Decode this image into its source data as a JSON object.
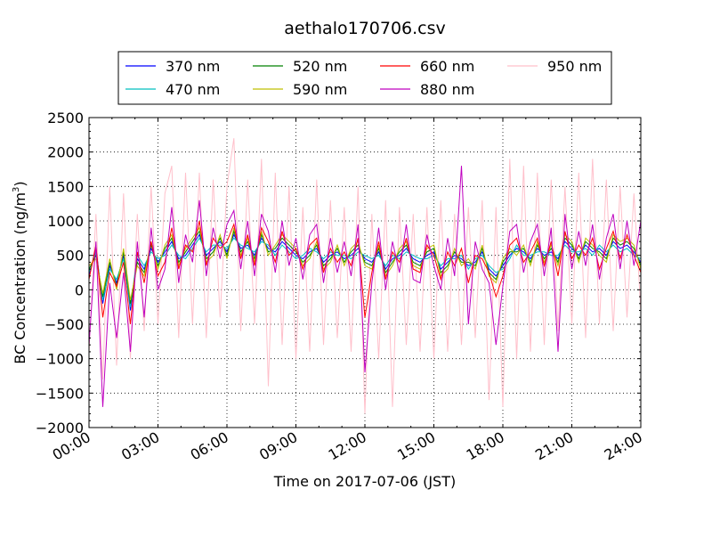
{
  "chart_data": {
    "type": "line",
    "title": "aethalo170706.csv",
    "xlabel": "Time on 2017-07-06 (JST)",
    "ylabel_main": "BC Concentration (ng/m",
    "ylabel_sup": "3",
    "ylabel_close": ")",
    "ylim": [
      -2000,
      2500
    ],
    "yticks": [
      -2000,
      -1500,
      -1000,
      -500,
      0,
      500,
      1000,
      1500,
      2000,
      2500
    ],
    "ytick_labels": [
      "−2000",
      "−1500",
      "−1000",
      "−500",
      "0",
      "500",
      "1000",
      "1500",
      "2000",
      "2500"
    ],
    "xlim_hours": [
      0,
      24
    ],
    "xticks_hours": [
      0,
      3,
      6,
      9,
      12,
      15,
      18,
      21,
      24
    ],
    "xtick_labels": [
      "00:00",
      "03:00",
      "06:00",
      "09:00",
      "12:00",
      "15:00",
      "18:00",
      "21:00",
      "24:00"
    ],
    "grid": true,
    "legend_position": "top-center",
    "series": [
      {
        "name": "370 nm",
        "color": "#0000ff"
      },
      {
        "name": "470 nm",
        "color": "#00bfbf"
      },
      {
        "name": "520 nm",
        "color": "#008000"
      },
      {
        "name": "590 nm",
        "color": "#bfbf00"
      },
      {
        "name": "660 nm",
        "color": "#ff0000"
      },
      {
        "name": "880 nm",
        "color": "#bf00bf"
      },
      {
        "name": "950 nm",
        "color": "#ffc0cb"
      }
    ],
    "x_hours": [
      0.0,
      0.3,
      0.6,
      0.9,
      1.2,
      1.5,
      1.8,
      2.1,
      2.4,
      2.7,
      3.0,
      3.3,
      3.6,
      3.9,
      4.2,
      4.5,
      4.8,
      5.1,
      5.4,
      5.7,
      6.0,
      6.3,
      6.6,
      6.9,
      7.2,
      7.5,
      7.8,
      8.1,
      8.4,
      8.7,
      9.0,
      9.3,
      9.6,
      9.9,
      10.2,
      10.5,
      10.8,
      11.1,
      11.4,
      11.7,
      12.0,
      12.3,
      12.6,
      12.9,
      13.2,
      13.5,
      13.8,
      14.1,
      14.4,
      14.7,
      15.0,
      15.3,
      15.6,
      15.9,
      16.2,
      16.5,
      16.8,
      17.1,
      17.4,
      17.7,
      18.0,
      18.3,
      18.6,
      18.9,
      19.2,
      19.5,
      19.8,
      20.1,
      20.4,
      20.7,
      21.0,
      21.3,
      21.6,
      21.9,
      22.2,
      22.5,
      22.8,
      23.1,
      23.4,
      23.7,
      24.0
    ],
    "series_values": [
      [
        200,
        600,
        -200,
        350,
        100,
        500,
        -300,
        450,
        300,
        600,
        400,
        550,
        700,
        450,
        500,
        650,
        800,
        500,
        600,
        700,
        550,
        800,
        600,
        650,
        500,
        750,
        600,
        550,
        700,
        600,
        500,
        450,
        550,
        600,
        400,
        500,
        550,
        450,
        500,
        600,
        450,
        400,
        550,
        300,
        450,
        500,
        600,
        450,
        400,
        500,
        550,
        300,
        400,
        500,
        450,
        350,
        400,
        550,
        300,
        200,
        350,
        500,
        600,
        550,
        450,
        600,
        500,
        550,
        450,
        700,
        600,
        500,
        650,
        550,
        600,
        500,
        700,
        600,
        650,
        550,
        400
      ],
      [
        250,
        550,
        -150,
        300,
        150,
        450,
        -250,
        500,
        350,
        550,
        450,
        500,
        650,
        500,
        450,
        600,
        750,
        550,
        650,
        650,
        600,
        750,
        650,
        600,
        550,
        700,
        650,
        500,
        650,
        550,
        450,
        500,
        600,
        550,
        450,
        550,
        500,
        500,
        450,
        550,
        500,
        450,
        500,
        350,
        500,
        450,
        550,
        500,
        450,
        450,
        500,
        350,
        450,
        450,
        500,
        300,
        450,
        500,
        350,
        250,
        300,
        450,
        650,
        500,
        500,
        550,
        550,
        500,
        500,
        650,
        550,
        550,
        600,
        500,
        650,
        550,
        650,
        550,
        600,
        500,
        450
      ],
      [
        300,
        500,
        -100,
        400,
        50,
        550,
        -200,
        400,
        250,
        650,
        350,
        600,
        750,
        400,
        550,
        700,
        850,
        450,
        550,
        750,
        500,
        850,
        550,
        700,
        450,
        800,
        550,
        600,
        750,
        650,
        550,
        400,
        500,
        650,
        350,
        450,
        600,
        400,
        550,
        650,
        400,
        350,
        600,
        250,
        400,
        550,
        650,
        400,
        350,
        550,
        600,
        250,
        350,
        550,
        400,
        400,
        350,
        600,
        250,
        150,
        400,
        550,
        550,
        600,
        400,
        650,
        450,
        600,
        400,
        750,
        650,
        450,
        700,
        600,
        550,
        450,
        750,
        650,
        700,
        600,
        350
      ],
      [
        350,
        450,
        -50,
        450,
        0,
        600,
        -150,
        350,
        200,
        700,
        300,
        650,
        800,
        350,
        600,
        750,
        900,
        400,
        500,
        800,
        450,
        900,
        500,
        750,
        400,
        850,
        500,
        650,
        800,
        700,
        600,
        350,
        450,
        700,
        300,
        400,
        650,
        350,
        600,
        700,
        350,
        300,
        650,
        200,
        350,
        600,
        700,
        350,
        300,
        600,
        650,
        200,
        300,
        600,
        350,
        450,
        300,
        650,
        200,
        100,
        450,
        600,
        500,
        650,
        350,
        700,
        400,
        650,
        350,
        800,
        700,
        400,
        750,
        650,
        500,
        400,
        800,
        700,
        750,
        650,
        300
      ],
      [
        150,
        650,
        -400,
        250,
        50,
        400,
        -500,
        550,
        100,
        700,
        200,
        400,
        900,
        300,
        650,
        550,
        1000,
        350,
        750,
        600,
        700,
        950,
        450,
        800,
        350,
        900,
        700,
        400,
        850,
        500,
        600,
        300,
        650,
        750,
        250,
        600,
        400,
        550,
        350,
        750,
        -400,
        250,
        700,
        150,
        550,
        400,
        750,
        300,
        250,
        650,
        500,
        150,
        550,
        350,
        600,
        100,
        500,
        450,
        250,
        -100,
        200,
        650,
        750,
        400,
        550,
        750,
        350,
        700,
        200,
        850,
        450,
        650,
        500,
        750,
        300,
        600,
        850,
        450,
        800,
        500,
        250
      ],
      [
        -800,
        700,
        -1700,
        100,
        -700,
        250,
        -900,
        700,
        -400,
        900,
        0,
        300,
        1200,
        100,
        800,
        400,
        1300,
        200,
        900,
        450,
        950,
        1150,
        300,
        1000,
        200,
        1100,
        850,
        250,
        1000,
        350,
        750,
        150,
        800,
        950,
        100,
        750,
        250,
        700,
        200,
        950,
        -1200,
        100,
        900,
        0,
        700,
        250,
        950,
        150,
        100,
        800,
        350,
        0,
        750,
        200,
        1800,
        -500,
        700,
        300,
        100,
        -800,
        50,
        850,
        950,
        250,
        700,
        950,
        200,
        900,
        -900,
        1100,
        300,
        850,
        350,
        950,
        150,
        750,
        1100,
        300,
        1000,
        350,
        1000
      ],
      [
        -900,
        1100,
        -1300,
        1500,
        -1100,
        1400,
        -1000,
        1100,
        -600,
        1500,
        -500,
        1400,
        1800,
        -700,
        1700,
        -500,
        1700,
        -700,
        1600,
        -400,
        1500,
        2200,
        -600,
        1600,
        -500,
        1900,
        -1400,
        1700,
        -800,
        1500,
        -1000,
        1200,
        -900,
        1600,
        -800,
        1300,
        -700,
        1200,
        -900,
        1500,
        -1800,
        1100,
        -1000,
        1300,
        -1700,
        1200,
        -800,
        1100,
        -900,
        1200,
        -1000,
        1300,
        -900,
        1100,
        -800,
        1200,
        -700,
        1300,
        -1600,
        1200,
        -1700,
        1900,
        -1000,
        1800,
        -900,
        1700,
        -800,
        1600,
        -600,
        1500,
        -500,
        1700,
        -700,
        1900,
        -500,
        1600,
        -600,
        1500,
        -400,
        1400,
        -300
      ]
    ]
  }
}
